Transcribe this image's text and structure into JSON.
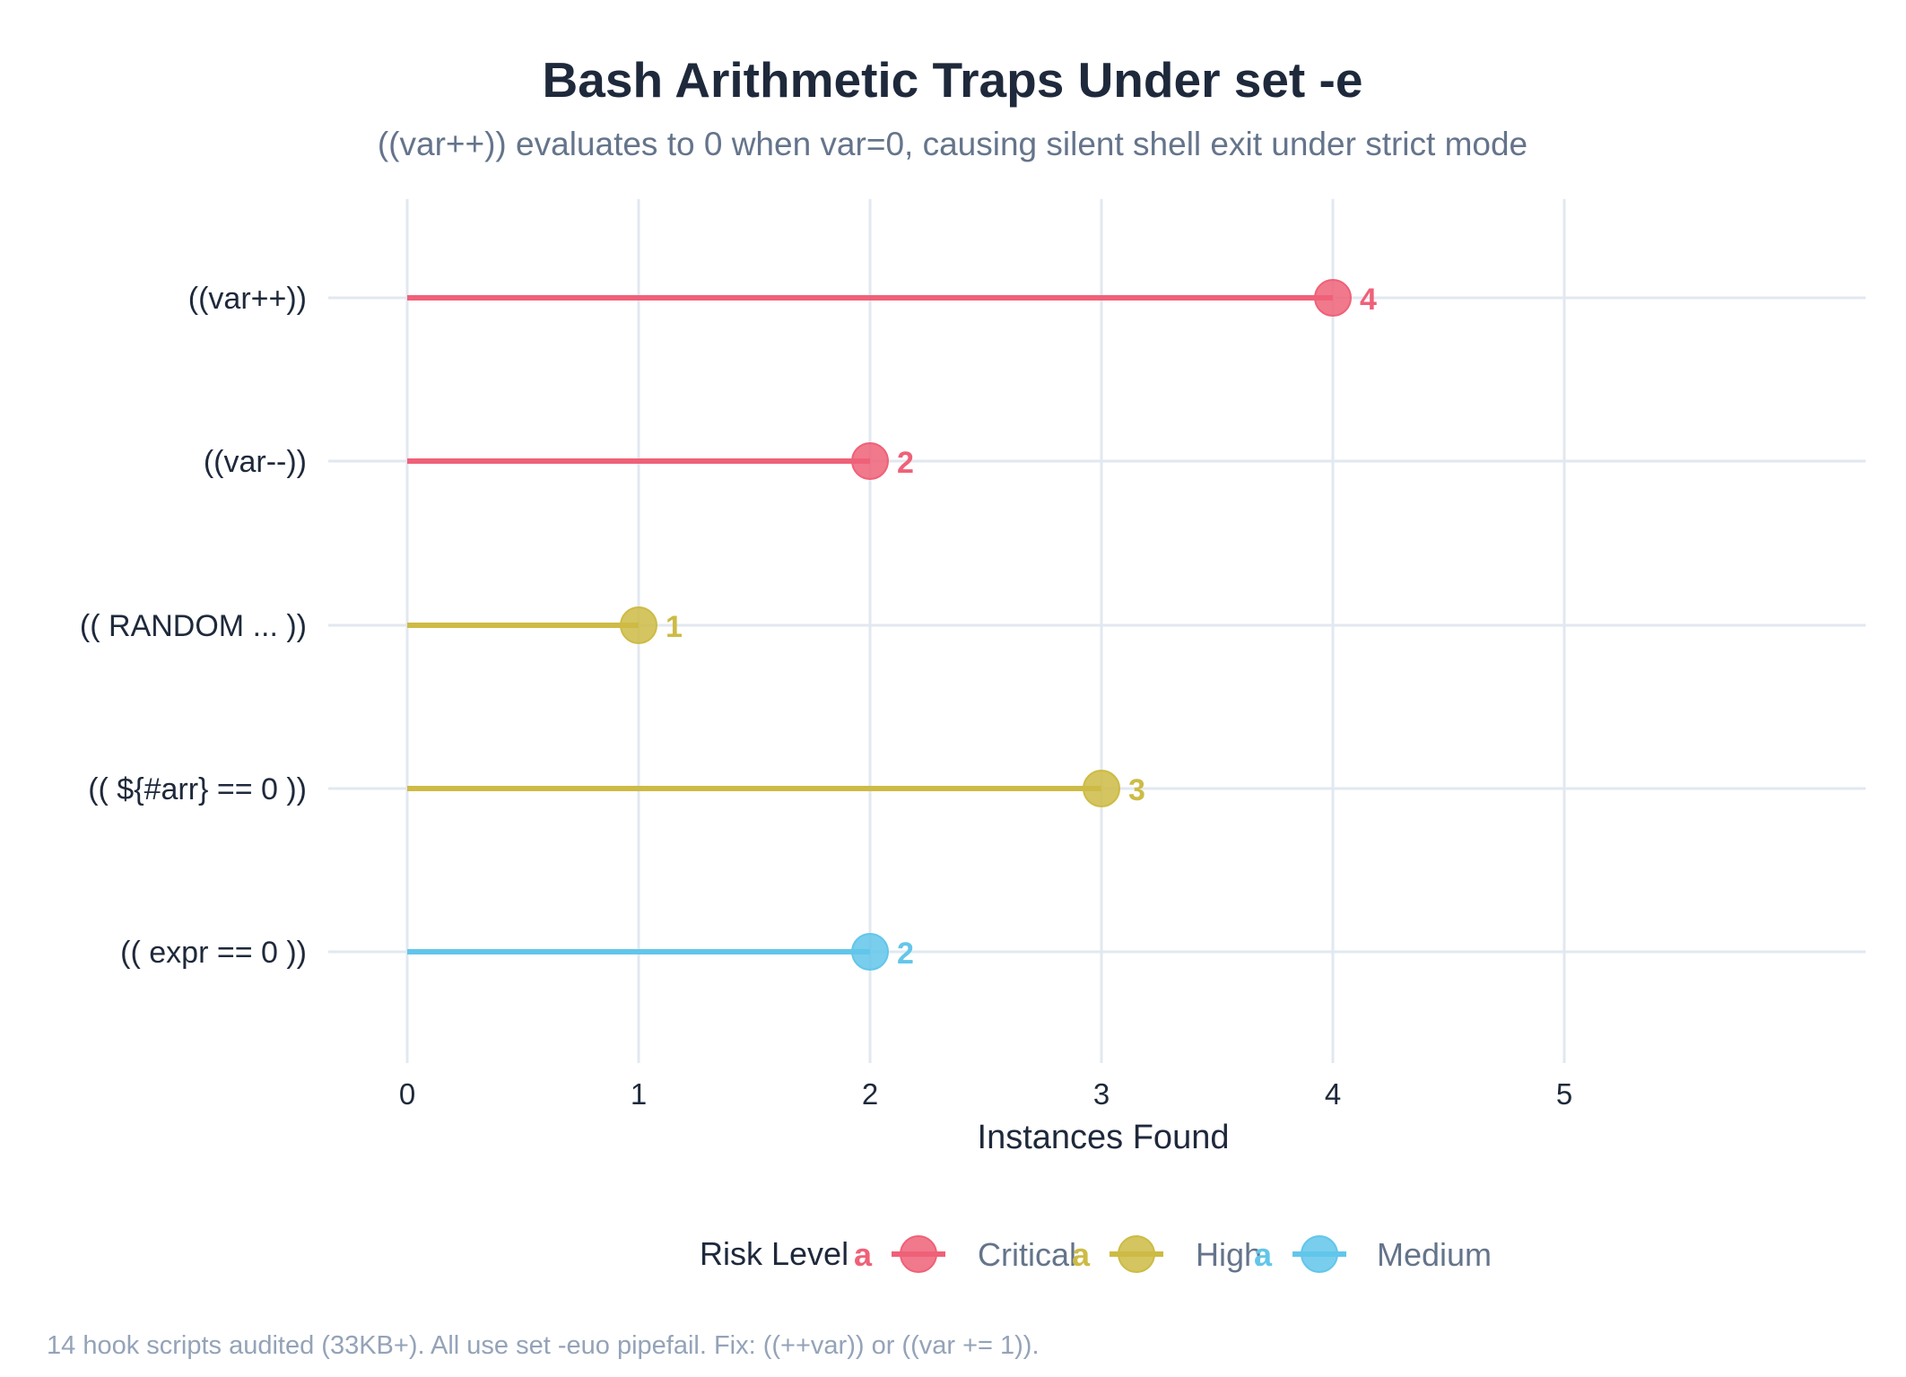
{
  "chart_data": {
    "type": "lollipop",
    "title": "Bash Arithmetic Traps Under set -e",
    "subtitle": "((var++)) evaluates to 0 when var=0, causing silent shell exit under strict mode",
    "xlabel": "Instances Found",
    "ylabel": "",
    "xlim": [
      0,
      6.3
    ],
    "x_ticks": [
      0,
      1,
      2,
      3,
      4,
      5
    ],
    "x_tick_labels": [
      "0",
      "1",
      "2",
      "3",
      "4",
      "5"
    ],
    "grid": true,
    "categories": [
      "((var++))",
      "((var--))",
      "(( RANDOM ... ))",
      "(( ${#arr} == 0 ))",
      "(( expr == 0 ))"
    ],
    "values": [
      4,
      2,
      1,
      3,
      2
    ],
    "risk": [
      "Critical",
      "Critical",
      "High",
      "High",
      "Medium"
    ],
    "value_labels": [
      "4",
      "2",
      "1",
      "3",
      "2"
    ],
    "legend": {
      "title": "Risk Level",
      "placement": "bottom",
      "entries": [
        {
          "name": "Critical",
          "color": "#ef6178"
        },
        {
          "name": "High",
          "color": "#cdbb45"
        },
        {
          "name": "Medium",
          "color": "#62c6ea"
        }
      ],
      "glyph_text": "a"
    },
    "caption": "14 hook scripts audited (33KB+). All use set -euo pipefail. Fix: ((++var)) or ((var += 1))."
  },
  "colors": {
    "Critical": "#ef6178",
    "High": "#cdbb45",
    "Medium": "#62c6ea"
  }
}
